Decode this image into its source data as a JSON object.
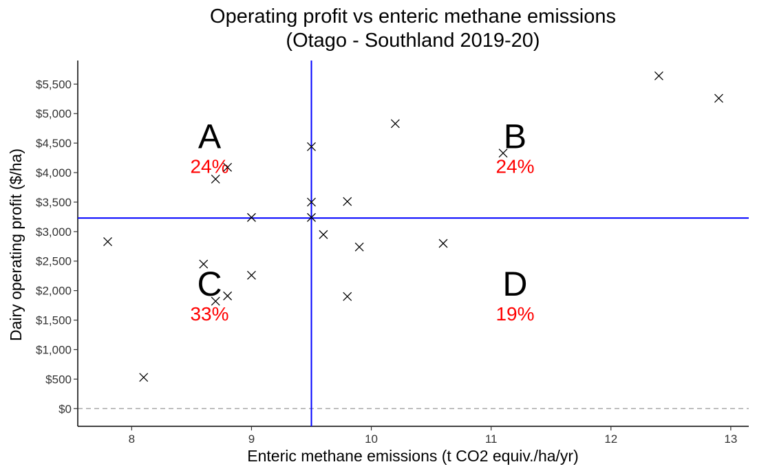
{
  "chart_data": {
    "type": "scatter",
    "title": "Operating profit vs enteric methane emissions",
    "subtitle": "(Otago - Southland 2019-20)",
    "xlabel": "Enteric methane emissions (t CO2 equiv./ha/yr)",
    "ylabel": "Dairy operating profit ($/ha)",
    "xlim": [
      7.55,
      13.15
    ],
    "ylim": [
      -300,
      5900
    ],
    "x_ticks": [
      8,
      9,
      10,
      11,
      12,
      13
    ],
    "x_tick_labels": [
      "8",
      "9",
      "10",
      "11",
      "12",
      "13"
    ],
    "y_ticks": [
      0,
      500,
      1000,
      1500,
      2000,
      2500,
      3000,
      3500,
      4000,
      4500,
      5000,
      5500
    ],
    "y_tick_labels": [
      "$0",
      "$500",
      "$1,000",
      "$1,500",
      "$2,000",
      "$2,500",
      "$3,000",
      "$3,500",
      "$4,000",
      "$4,500",
      "$5,000",
      "$5,500"
    ],
    "grid": false,
    "marker": "x",
    "points": [
      {
        "x": 7.8,
        "y": 2830
      },
      {
        "x": 8.1,
        "y": 530
      },
      {
        "x": 8.6,
        "y": 2450
      },
      {
        "x": 8.7,
        "y": 3890
      },
      {
        "x": 8.7,
        "y": 1820
      },
      {
        "x": 8.8,
        "y": 4090
      },
      {
        "x": 8.8,
        "y": 1910
      },
      {
        "x": 9.0,
        "y": 3240
      },
      {
        "x": 9.0,
        "y": 2260
      },
      {
        "x": 9.5,
        "y": 4440
      },
      {
        "x": 9.5,
        "y": 3500
      },
      {
        "x": 9.5,
        "y": 3240
      },
      {
        "x": 9.6,
        "y": 2950
      },
      {
        "x": 9.8,
        "y": 3510
      },
      {
        "x": 9.8,
        "y": 1900
      },
      {
        "x": 9.9,
        "y": 2740
      },
      {
        "x": 10.2,
        "y": 4830
      },
      {
        "x": 10.6,
        "y": 2800
      },
      {
        "x": 11.1,
        "y": 4330
      },
      {
        "x": 12.4,
        "y": 5640
      },
      {
        "x": 12.9,
        "y": 5260
      }
    ],
    "reference_lines": {
      "vertical_x": 9.5,
      "horizontal_y": 3230,
      "line_color": "#0000ff",
      "zero_line_y": 0,
      "zero_line_color": "#aaaaaa"
    },
    "quadrants": [
      {
        "letter": "A",
        "percent": "24%",
        "x": 8.65,
        "y": 4600
      },
      {
        "letter": "B",
        "percent": "24%",
        "x": 11.2,
        "y": 4600
      },
      {
        "letter": "C",
        "percent": "33%",
        "x": 8.65,
        "y": 2100
      },
      {
        "letter": "D",
        "percent": "19%",
        "x": 11.2,
        "y": 2100
      }
    ],
    "percent_color": "#ff0000"
  }
}
